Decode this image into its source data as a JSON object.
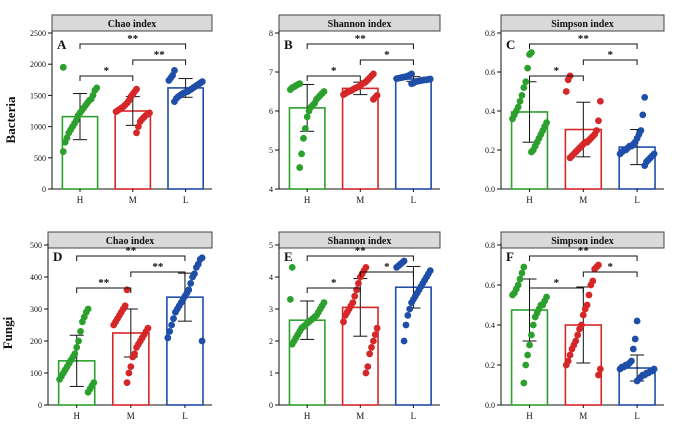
{
  "figure": {
    "row_labels": [
      "Bacteria",
      "Fungi"
    ],
    "group_colors": {
      "H": "#2ca02c",
      "M": "#d62728",
      "L": "#1f4ea8"
    }
  },
  "chart_data": [
    {
      "type": "bar",
      "panel": "A",
      "title": "Chao index",
      "row": "Bacteria",
      "categories": [
        "H",
        "M",
        "L"
      ],
      "ylim": [
        0,
        2500
      ],
      "yticks": [
        0,
        500,
        1000,
        1500,
        2000,
        2500
      ],
      "means": [
        1160,
        1250,
        1620
      ],
      "sd": [
        370,
        230,
        150
      ],
      "points": [
        [
          1950,
          1620,
          1580,
          1500,
          1440,
          1420,
          1380,
          1340,
          1300,
          1260,
          1220,
          1180,
          1100,
          1050,
          1000,
          950,
          900,
          820,
          750,
          600
        ],
        [
          1600,
          1560,
          1520,
          1480,
          1420,
          1380,
          1350,
          1320,
          1300,
          1280,
          1260,
          1240,
          1220,
          1200,
          1180,
          1150,
          1120,
          1080,
          1000,
          900
        ],
        [
          1900,
          1820,
          1780,
          1740,
          1720,
          1700,
          1680,
          1660,
          1640,
          1620,
          1600,
          1580,
          1560,
          1550,
          1540,
          1520,
          1500,
          1480,
          1450,
          1400
        ]
      ],
      "significance": [
        {
          "pair": [
            "H",
            "M"
          ],
          "label": "*"
        },
        {
          "pair": [
            "M",
            "L"
          ],
          "label": "**"
        },
        {
          "pair": [
            "H",
            "L"
          ],
          "label": "**"
        }
      ]
    },
    {
      "type": "bar",
      "panel": "B",
      "title": "Shannon index",
      "row": "Bacteria",
      "categories": [
        "H",
        "M",
        "L"
      ],
      "ylim": [
        4,
        8
      ],
      "yticks": [
        4,
        5,
        6,
        7,
        8
      ],
      "means": [
        6.08,
        6.58,
        6.82
      ],
      "sd": [
        0.6,
        0.16,
        0.06
      ],
      "points": [
        [
          6.7,
          6.68,
          6.65,
          6.62,
          6.6,
          6.55,
          6.5,
          6.45,
          6.4,
          6.35,
          6.3,
          6.2,
          6.15,
          6.1,
          6.0,
          5.85,
          5.55,
          5.3,
          4.9,
          4.55
        ],
        [
          6.95,
          6.9,
          6.85,
          6.8,
          6.75,
          6.72,
          6.7,
          6.65,
          6.62,
          6.6,
          6.58,
          6.55,
          6.52,
          6.5,
          6.48,
          6.45,
          6.42,
          6.4,
          6.35,
          6.3
        ],
        [
          6.95,
          6.92,
          6.9,
          6.88,
          6.87,
          6.86,
          6.85,
          6.84,
          6.83,
          6.82,
          6.81,
          6.8,
          6.8,
          6.79,
          6.78,
          6.77,
          6.76,
          6.75,
          6.72,
          6.7
        ]
      ],
      "significance": [
        {
          "pair": [
            "H",
            "M"
          ],
          "label": "*"
        },
        {
          "pair": [
            "M",
            "L"
          ],
          "label": "*"
        },
        {
          "pair": [
            "H",
            "L"
          ],
          "label": "**"
        }
      ]
    },
    {
      "type": "bar",
      "panel": "C",
      "title": "Simpson index",
      "row": "Bacteria",
      "categories": [
        "H",
        "M",
        "L"
      ],
      "ylim": [
        0,
        0.8
      ],
      "yticks": [
        0.0,
        0.2,
        0.4,
        0.6,
        0.8
      ],
      "means": [
        0.395,
        0.305,
        0.215
      ],
      "sd": [
        0.155,
        0.14,
        0.09
      ],
      "points": [
        [
          0.7,
          0.69,
          0.62,
          0.55,
          0.52,
          0.48,
          0.45,
          0.42,
          0.4,
          0.38,
          0.36,
          0.34,
          0.32,
          0.3,
          0.28,
          0.26,
          0.24,
          0.22,
          0.2,
          0.19
        ],
        [
          0.58,
          0.56,
          0.5,
          0.45,
          0.35,
          0.3,
          0.28,
          0.27,
          0.26,
          0.25,
          0.24,
          0.24,
          0.23,
          0.22,
          0.21,
          0.2,
          0.19,
          0.18,
          0.17,
          0.16
        ],
        [
          0.47,
          0.38,
          0.3,
          0.28,
          0.26,
          0.24,
          0.23,
          0.22,
          0.22,
          0.21,
          0.2,
          0.2,
          0.19,
          0.18,
          0.18,
          0.17,
          0.16,
          0.15,
          0.14,
          0.12
        ]
      ],
      "significance": [
        {
          "pair": [
            "H",
            "M"
          ],
          "label": "*"
        },
        {
          "pair": [
            "M",
            "L"
          ],
          "label": "*"
        },
        {
          "pair": [
            "H",
            "L"
          ],
          "label": "**"
        }
      ]
    },
    {
      "type": "bar",
      "panel": "D",
      "title": "Chao index",
      "row": "Fungi",
      "categories": [
        "H",
        "M",
        "L"
      ],
      "ylim": [
        0,
        500
      ],
      "yticks": [
        0,
        100,
        200,
        300,
        400,
        500
      ],
      "means": [
        138,
        225,
        337
      ],
      "sd": [
        80,
        75,
        75
      ],
      "points": [
        [
          300,
          290,
          275,
          260,
          230,
          200,
          180,
          160,
          150,
          140,
          130,
          120,
          110,
          100,
          90,
          80,
          70,
          60,
          50,
          40
        ],
        [
          360,
          310,
          300,
          290,
          280,
          270,
          260,
          250,
          240,
          230,
          220,
          210,
          200,
          190,
          180,
          160,
          150,
          120,
          100,
          70
        ],
        [
          460,
          455,
          440,
          430,
          410,
          400,
          380,
          360,
          350,
          340,
          330,
          320,
          310,
          300,
          290,
          270,
          250,
          230,
          210,
          200
        ]
      ],
      "significance": [
        {
          "pair": [
            "H",
            "M"
          ],
          "label": "**"
        },
        {
          "pair": [
            "M",
            "L"
          ],
          "label": "**"
        },
        {
          "pair": [
            "H",
            "L"
          ],
          "label": "**"
        }
      ]
    },
    {
      "type": "bar",
      "panel": "E",
      "title": "Shannon index",
      "row": "Fungi",
      "categories": [
        "H",
        "M",
        "L"
      ],
      "ylim": [
        0,
        5
      ],
      "yticks": [
        0,
        1,
        2,
        3,
        4,
        5
      ],
      "means": [
        2.65,
        3.05,
        3.68
      ],
      "sd": [
        0.6,
        0.9,
        0.65
      ],
      "points": [
        [
          4.3,
          3.3,
          3.2,
          3.1,
          3.0,
          2.9,
          2.8,
          2.75,
          2.7,
          2.65,
          2.6,
          2.55,
          2.5,
          2.45,
          2.4,
          2.3,
          2.2,
          2.1,
          2.0,
          1.9
        ],
        [
          4.3,
          4.2,
          4.1,
          4.0,
          3.8,
          3.6,
          3.4,
          3.2,
          3.1,
          3.0,
          2.9,
          2.8,
          2.6,
          2.4,
          2.2,
          2.0,
          1.8,
          1.6,
          1.2,
          1.0
        ],
        [
          4.5,
          4.45,
          4.4,
          4.35,
          4.3,
          4.2,
          4.1,
          4.0,
          3.9,
          3.8,
          3.7,
          3.6,
          3.5,
          3.4,
          3.3,
          3.2,
          3.0,
          2.8,
          2.5,
          2.0
        ]
      ],
      "significance": [
        {
          "pair": [
            "H",
            "M"
          ],
          "label": "*"
        },
        {
          "pair": [
            "M",
            "L"
          ],
          "label": "*"
        },
        {
          "pair": [
            "H",
            "L"
          ],
          "label": "**"
        }
      ]
    },
    {
      "type": "bar",
      "panel": "F",
      "title": "Simpson index",
      "row": "Fungi",
      "categories": [
        "H",
        "M",
        "L"
      ],
      "ylim": [
        0,
        0.8
      ],
      "yticks": [
        0.0,
        0.2,
        0.4,
        0.6,
        0.8
      ],
      "means": [
        0.475,
        0.4,
        0.185
      ],
      "sd": [
        0.155,
        0.19,
        0.065
      ],
      "points": [
        [
          0.69,
          0.66,
          0.63,
          0.6,
          0.58,
          0.56,
          0.55,
          0.54,
          0.52,
          0.5,
          0.5,
          0.48,
          0.46,
          0.44,
          0.4,
          0.35,
          0.3,
          0.25,
          0.2,
          0.11
        ],
        [
          0.7,
          0.69,
          0.68,
          0.62,
          0.6,
          0.55,
          0.5,
          0.48,
          0.45,
          0.4,
          0.38,
          0.35,
          0.32,
          0.3,
          0.28,
          0.25,
          0.22,
          0.2,
          0.18,
          0.15
        ],
        [
          0.42,
          0.33,
          0.28,
          0.22,
          0.21,
          0.2,
          0.2,
          0.19,
          0.19,
          0.18,
          0.18,
          0.17,
          0.17,
          0.16,
          0.16,
          0.15,
          0.15,
          0.14,
          0.13,
          0.12
        ]
      ],
      "significance": [
        {
          "pair": [
            "H",
            "M"
          ],
          "label": "*"
        },
        {
          "pair": [
            "M",
            "L"
          ],
          "label": "*"
        },
        {
          "pair": [
            "H",
            "L"
          ],
          "label": "**"
        }
      ]
    }
  ]
}
